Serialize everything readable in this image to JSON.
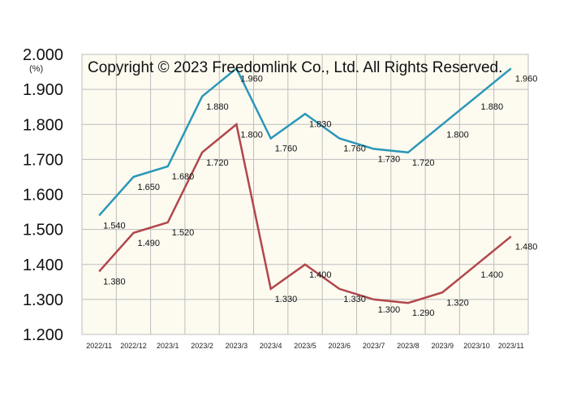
{
  "chart_data": {
    "type": "line",
    "title": "",
    "unit_label": "(%)",
    "copyright": "Copyright © 2023 Freedomlink Co., Ltd. All Rights Reserved.",
    "categories": [
      "2022/11",
      "2022/12",
      "2023/1",
      "2023/2",
      "2023/3",
      "2023/4",
      "2023/5",
      "2023/6",
      "2023/7",
      "2023/8",
      "2023/9",
      "2023/10",
      "2023/11"
    ],
    "ylim": [
      1.2,
      2.0
    ],
    "yticks": [
      "1.200",
      "1.300",
      "1.400",
      "1.500",
      "1.600",
      "1.700",
      "1.800",
      "1.900",
      "2.000"
    ],
    "grid": true,
    "colors": {
      "series1": "#2a97b8",
      "series2": "#b0474a",
      "plot_bg": "#fdfaf0",
      "grid": "#bdbdbd"
    },
    "series": [
      {
        "values": [
          1.54,
          1.65,
          1.68,
          1.88,
          1.96,
          1.76,
          1.83,
          1.76,
          1.73,
          1.72,
          1.8,
          1.88,
          1.96
        ],
        "labels": [
          "1.540",
          "1.650",
          "1.680",
          "1.880",
          "1.960",
          "1.760",
          "1.830",
          "1.760",
          "1.730",
          "1.720",
          "1.800",
          "1.880",
          "1.960"
        ]
      },
      {
        "values": [
          1.38,
          1.49,
          1.52,
          1.72,
          1.8,
          1.33,
          1.4,
          1.33,
          1.3,
          1.29,
          1.32,
          1.4,
          1.48
        ],
        "labels": [
          "1.380",
          "1.490",
          "1.520",
          "1.720",
          "1.800",
          "1.330",
          "1.400",
          "1.330",
          "1.300",
          "1.290",
          "1.320",
          "1.400",
          "1.480"
        ]
      }
    ]
  }
}
